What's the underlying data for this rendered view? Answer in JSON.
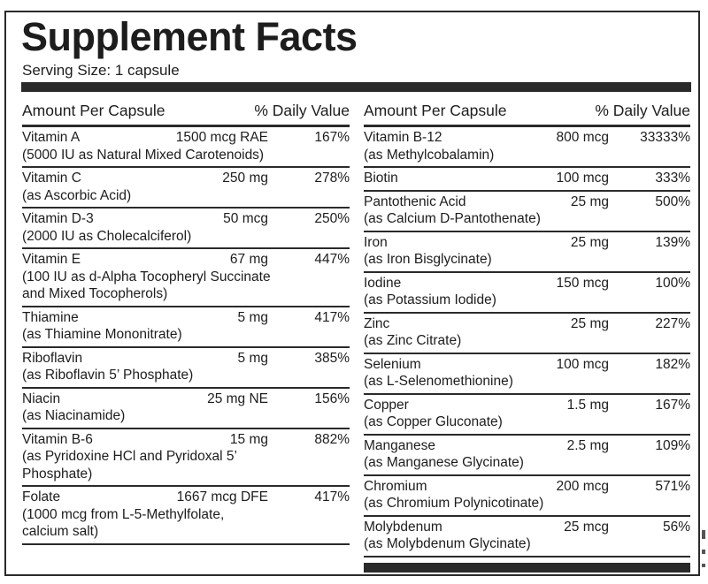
{
  "title": "Supplement Facts",
  "serving_size": "Serving Size: 1 capsule",
  "header": {
    "amount_label": "Amount Per Capsule",
    "dv_label": "% Daily Value"
  },
  "left_rows": [
    {
      "name": "Vitamin A",
      "amount": "1500 mcg RAE",
      "dv": "167%",
      "sub": "(5000 IU as Natural Mixed Carotenoids)"
    },
    {
      "name": "Vitamin C",
      "amount": "250 mg",
      "dv": "278%",
      "sub": "(as Ascorbic Acid)"
    },
    {
      "name": "Vitamin D-3",
      "amount": "50 mcg",
      "dv": "250%",
      "sub": "(2000 IU as Cholecalciferol)"
    },
    {
      "name": "Vitamin E",
      "amount": "67 mg",
      "dv": "447%",
      "sub": "(100 IU as d-Alpha Tocopheryl Succinate\nand Mixed Tocopherols)"
    },
    {
      "name": "Thiamine",
      "amount": "5 mg",
      "dv": "417%",
      "sub": "(as Thiamine Mononitrate)"
    },
    {
      "name": "Riboflavin",
      "amount": "5 mg",
      "dv": "385%",
      "sub": "(as Riboflavin 5’ Phosphate)"
    },
    {
      "name": "Niacin",
      "amount": "25 mg NE",
      "dv": "156%",
      "sub": "(as Niacinamide)"
    },
    {
      "name": "Vitamin B-6",
      "amount": "15 mg",
      "dv": "882%",
      "sub": "(as Pyridoxine HCl and Pyridoxal 5’\nPhosphate)"
    },
    {
      "name": "Folate",
      "amount": "1667 mcg DFE",
      "dv": "417%",
      "sub": "(1000 mcg from L-5-Methylfolate,\ncalcium salt)"
    }
  ],
  "right_rows": [
    {
      "name": "Vitamin B-12",
      "amount": "800 mcg",
      "dv": "33333%",
      "sub": "(as Methylcobalamin)"
    },
    {
      "name": "Biotin",
      "amount": "100 mcg",
      "dv": "333%",
      "sub": ""
    },
    {
      "name": "Pantothenic Acid",
      "amount": "25 mg",
      "dv": "500%",
      "sub": "(as Calcium D-Pantothenate)"
    },
    {
      "name": "Iron",
      "amount": "25 mg",
      "dv": "139%",
      "sub": "(as Iron Bisglycinate)"
    },
    {
      "name": "Iodine",
      "amount": "150 mcg",
      "dv": "100%",
      "sub": "(as Potassium Iodide)"
    },
    {
      "name": "Zinc",
      "amount": "25 mg",
      "dv": "227%",
      "sub": "(as Zinc Citrate)"
    },
    {
      "name": "Selenium",
      "amount": "100 mcg",
      "dv": "182%",
      "sub": "(as L-Selenomethionine)"
    },
    {
      "name": "Copper",
      "amount": "1.5 mg",
      "dv": "167%",
      "sub": "(as Copper Gluconate)"
    },
    {
      "name": "Manganese",
      "amount": "2.5 mg",
      "dv": "109%",
      "sub": "(as Manganese Glycinate)"
    },
    {
      "name": "Chromium",
      "amount": "200 mcg",
      "dv": "571%",
      "sub": "(as Chromium Polynicotinate)"
    },
    {
      "name": "Molybdenum",
      "amount": "25 mcg",
      "dv": "56%",
      "sub": "(as Molybdenum Glycinate)"
    }
  ]
}
